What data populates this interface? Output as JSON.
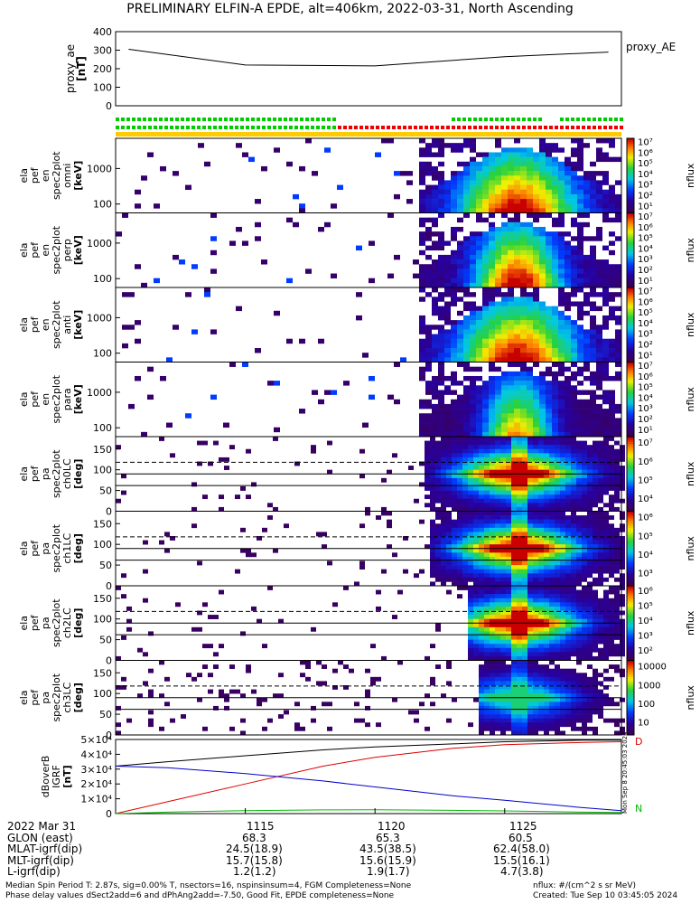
{
  "title": "PRELIMINARY ELFIN-A EPDE, alt=406km, 2022-03-31, North Ascending",
  "panels": [
    {
      "id": "proxy_ae",
      "ylabel": [
        "proxy_ae",
        "[nT]"
      ],
      "right_label": "proxy_AE",
      "yticks": [
        "400",
        "300",
        "200",
        "100",
        "0"
      ]
    },
    {
      "id": "en_omni",
      "ylabel": [
        "ela",
        "pef",
        "en",
        "spec2plot",
        "omni",
        "[keV]"
      ],
      "yticks": [
        "1000",
        "100"
      ],
      "cbar_label": "nflux",
      "cbar_ticks": [
        "10⁷",
        "10⁶",
        "10⁵",
        "10⁴",
        "10³",
        "10²",
        "10¹"
      ]
    },
    {
      "id": "en_perp",
      "ylabel": [
        "ela",
        "pef",
        "en",
        "spec2plot",
        "perp",
        "[keV]"
      ],
      "yticks": [
        "1000",
        "100"
      ],
      "cbar_label": "nflux",
      "cbar_ticks": [
        "10⁷",
        "10⁶",
        "10⁵",
        "10⁴",
        "10³",
        "10²",
        "10¹"
      ]
    },
    {
      "id": "en_anti",
      "ylabel": [
        "ela",
        "pef",
        "en",
        "spec2plot",
        "anti",
        "[keV]"
      ],
      "yticks": [
        "1000",
        "100"
      ],
      "cbar_label": "nflux",
      "cbar_ticks": [
        "10⁷",
        "10⁶",
        "10⁵",
        "10⁴",
        "10³",
        "10²",
        "10¹"
      ]
    },
    {
      "id": "en_para",
      "ylabel": [
        "ela",
        "pef",
        "en",
        "spec2plot",
        "para",
        "[keV]"
      ],
      "yticks": [
        "1000",
        "100"
      ],
      "cbar_label": "nflux",
      "cbar_ticks": [
        "10⁷",
        "10⁶",
        "10⁵",
        "10⁴",
        "10³",
        "10²",
        "10¹"
      ]
    },
    {
      "id": "pa_ch0",
      "ylabel": [
        "ela",
        "pef",
        "pa",
        "spec2plot",
        "ch0LC",
        "[deg]"
      ],
      "yticks": [
        "150",
        "100",
        "50",
        "0"
      ],
      "cbar_label": "nflux",
      "cbar_ticks": [
        "10⁷",
        "10⁶",
        "10⁵",
        "10⁴"
      ]
    },
    {
      "id": "pa_ch1",
      "ylabel": [
        "ela",
        "pef",
        "pa",
        "spec2plot",
        "ch1LC",
        "[deg]"
      ],
      "yticks": [
        "150",
        "100",
        "50",
        "0"
      ],
      "cbar_label": "nflux",
      "cbar_ticks": [
        "10⁶",
        "10⁵",
        "10⁴",
        "10³"
      ]
    },
    {
      "id": "pa_ch2",
      "ylabel": [
        "ela",
        "pef",
        "pa",
        "spec2plot",
        "ch2LC",
        "[deg]"
      ],
      "yticks": [
        "150",
        "100",
        "50",
        "0"
      ],
      "cbar_label": "nflux",
      "cbar_ticks": [
        "10⁶",
        "10⁵",
        "10⁴",
        "10³",
        "10²"
      ]
    },
    {
      "id": "pa_ch3",
      "ylabel": [
        "ela",
        "pef",
        "pa",
        "spec2plot",
        "ch3LC",
        "[deg]"
      ],
      "yticks": [
        "150",
        "100",
        "50",
        "0"
      ],
      "cbar_label": "nflux",
      "cbar_ticks": [
        "10000",
        "1000",
        "100",
        "10"
      ]
    },
    {
      "id": "bfield",
      "ylabel": [
        "dBoverB",
        "IGRF",
        "[nT]"
      ],
      "yticks": [
        "5×10⁴",
        "4×10⁴",
        "3×10⁴",
        "2×10⁴",
        "1×10⁴",
        "0"
      ],
      "legend_right": [
        "D",
        "N"
      ]
    }
  ],
  "side_stamp": "Mon Sep 8 20:45:03 2024",
  "chart_data": [
    {
      "type": "line",
      "id": "proxy_ae",
      "ylabel": "proxy_ae [nT]",
      "ylim": [
        0,
        400
      ],
      "x": [
        1110.5,
        1115,
        1120,
        1125,
        1129
      ],
      "series": [
        {
          "name": "proxy_AE",
          "values": [
            305,
            220,
            215,
            265,
            290
          ]
        }
      ]
    },
    {
      "type": "heatmap",
      "id": "spectrograms",
      "xlim": [
        1110,
        1129.5
      ],
      "description_series": [
        "en omni",
        "en perp",
        "en anti",
        "en para",
        "pa ch0LC",
        "pa ch1LC",
        "pa ch2LC",
        "pa ch3LC"
      ],
      "energy_ylim_keV": [
        60,
        6000
      ],
      "pa_ylim_deg": [
        0,
        180
      ],
      "peak_x": 1125.5
    },
    {
      "type": "line",
      "id": "bfield",
      "ylim": [
        0,
        50000
      ],
      "x": [
        1110,
        1112,
        1115,
        1118,
        1120,
        1123,
        1125,
        1128,
        1129.5
      ],
      "series": [
        {
          "name": "black",
          "values": [
            32000,
            35000,
            39000,
            43000,
            45000,
            47000,
            48500,
            49500,
            49500
          ]
        },
        {
          "name": "red",
          "values": [
            0,
            8000,
            20000,
            32000,
            38000,
            44000,
            46500,
            48000,
            48500
          ]
        },
        {
          "name": "blue",
          "values": [
            32000,
            31000,
            27000,
            22000,
            18000,
            12000,
            9000,
            4000,
            2000
          ]
        },
        {
          "name": "green",
          "values": [
            0,
            1000,
            2000,
            2500,
            2600,
            2200,
            1800,
            1000,
            800
          ]
        }
      ]
    }
  ],
  "footer": {
    "date": "2022 Mar 31",
    "xticks": [
      "1115",
      "1120",
      "1125"
    ],
    "rows": [
      {
        "label": "GLON (east)",
        "vals": [
          "68.3",
          "65.3",
          "60.5"
        ]
      },
      {
        "label": "MLAT-igrf(dip)",
        "vals": [
          "24.5(18.9)",
          "43.5(38.5)",
          "62.4(58.0)"
        ]
      },
      {
        "label": "MLT-igrf(dip)",
        "vals": [
          "15.7(15.8)",
          "15.6(15.9)",
          "15.5(16.1)"
        ]
      },
      {
        "label": "L-igrf(dip)",
        "vals": [
          "1.2(1.2)",
          "1.9(1.7)",
          "4.7(3.8)"
        ]
      }
    ],
    "note1": "Median Spin Period T: 2.87s, sig=0.00% T, nsectors=16, nspinsinsum=4, FGM Completeness=None",
    "note2": "Phase delay values dSect2add=6 and dPhAng2add=-7.50, Good Fit, EPDE completeness=None",
    "units": "nflux: #/(cm^2 s sr MeV)",
    "created": "Created: Tue Sep 10 03:45:05 2024"
  }
}
